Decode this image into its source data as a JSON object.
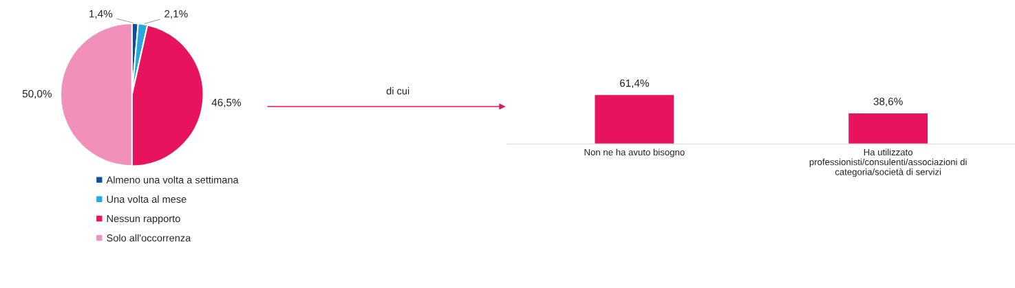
{
  "chart_data": [
    {
      "type": "pie",
      "categories": [
        "Almeno una volta a settimana",
        "Una volta al mese",
        "Nessun rapporto",
        "Solo all'occorrenza"
      ],
      "values": [
        1.4,
        2.1,
        46.5,
        50.0
      ],
      "value_labels": [
        "1,4%",
        "2,1%",
        "46,5%",
        "50,0%"
      ],
      "colors": [
        "#0d4f9e",
        "#29a8e0",
        "#e8135f",
        "#f191bb"
      ],
      "legend": "bottom",
      "annotations": [
        "di cui"
      ]
    },
    {
      "type": "bar",
      "categories": [
        "Non ne ha avuto bisogno",
        "Ha utilizzato\nprofessionisti/consulenti/associazioni di\ncategoria/società di servizi"
      ],
      "values": [
        61.4,
        38.6
      ],
      "value_labels": [
        "61,4%",
        "38,6%"
      ],
      "color": "#e8135f",
      "tick_labels": "x"
    }
  ]
}
